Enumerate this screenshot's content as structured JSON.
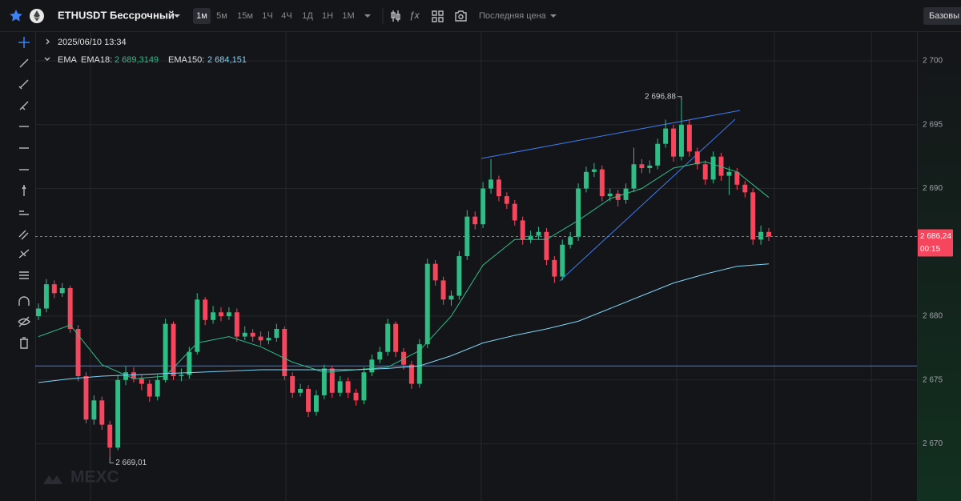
{
  "toolbar": {
    "symbol": "ETHUSDT Бессрочный",
    "intervals": [
      "1м",
      "5м",
      "15м",
      "1Ч",
      "4Ч",
      "1Д",
      "1Н",
      "1М"
    ],
    "price_type": "Последняя цена",
    "mode": "Базовы"
  },
  "watermark": "MEXC",
  "legend": {
    "datetime": "2025/06/10 13:34",
    "indicator": "EMA"
  },
  "chart_data": {
    "type": "candlestick",
    "up_color": "#2ebd85",
    "down_color": "#f6465d",
    "open": [
      2680.0,
      2680.6,
      2682.5,
      2681.8,
      2682.2,
      2679.0,
      2675.3,
      2671.9,
      2673.4,
      2671.5,
      2669.7,
      2675.0,
      2675.6,
      2675.1,
      2674.7,
      2673.7,
      2675.0,
      2679.4,
      2675.3,
      2675.4,
      2677.2,
      2681.3,
      2679.7,
      2680.3,
      2680.0,
      2680.3,
      2678.4,
      2678.7,
      2678.4,
      2678.1,
      2678.3,
      2679.0,
      2675.3,
      2674.0,
      2674.3,
      2672.5,
      2673.8,
      2675.9,
      2674.0,
      2674.9,
      2674.0,
      2673.4,
      2675.6,
      2676.6,
      2677.2,
      2679.4,
      2677.2,
      2676.2,
      2674.7,
      2677.8,
      2684.1,
      2682.8,
      2681.3,
      2681.6,
      2684.7,
      2687.8,
      2687.2,
      2690.0,
      2690.7,
      2689.4,
      2688.8,
      2687.5,
      2686.0,
      2686.3,
      2686.6,
      2684.4,
      2683.1,
      2685.6,
      2686.2,
      2690.0,
      2691.3,
      2691.5,
      2689.4,
      2689.6,
      2689.1,
      2690.0,
      2691.9,
      2691.6,
      2691.8,
      2693.5,
      2694.7,
      2692.5,
      2695.0,
      2692.9,
      2691.9,
      2690.7,
      2692.5,
      2691.0,
      2691.3,
      2690.3,
      2689.7,
      2686.0,
      2686.6
    ],
    "high": [
      2681.0,
      2682.9,
      2682.8,
      2682.6,
      2682.4,
      2679.3,
      2675.6,
      2673.8,
      2673.7,
      2671.8,
      2675.4,
      2676.1,
      2676.0,
      2675.4,
      2675.0,
      2675.4,
      2679.8,
      2679.6,
      2675.9,
      2677.6,
      2681.8,
      2681.5,
      2680.8,
      2680.7,
      2680.7,
      2680.6,
      2679.2,
      2679.0,
      2678.8,
      2678.8,
      2679.4,
      2679.2,
      2675.6,
      2674.7,
      2674.6,
      2674.2,
      2676.2,
      2676.1,
      2675.3,
      2675.2,
      2674.3,
      2676.0,
      2677.0,
      2677.6,
      2679.8,
      2679.6,
      2677.5,
      2676.5,
      2678.2,
      2684.5,
      2684.4,
      2683.1,
      2682.0,
      2685.1,
      2688.3,
      2688.2,
      2690.5,
      2692.3,
      2691.0,
      2689.7,
      2689.1,
      2687.8,
      2686.7,
      2687.0,
      2686.9,
      2684.7,
      2686.0,
      2686.6,
      2690.4,
      2691.7,
      2692.0,
      2691.8,
      2690.0,
      2689.9,
      2690.4,
      2693.2,
      2692.3,
      2692.2,
      2693.9,
      2695.4,
      2695.0,
      2696.88,
      2695.4,
      2693.2,
      2692.2,
      2692.9,
      2692.8,
      2691.7,
      2691.6,
      2690.6,
      2690.0,
      2687.1,
      2686.9
    ],
    "low": [
      2679.7,
      2680.3,
      2681.4,
      2681.5,
      2678.7,
      2674.9,
      2671.6,
      2671.5,
      2671.1,
      2669.01,
      2669.5,
      2674.6,
      2674.8,
      2674.2,
      2673.3,
      2673.4,
      2674.8,
      2675.0,
      2674.9,
      2675.1,
      2677.0,
      2679.3,
      2679.4,
      2679.6,
      2679.7,
      2678.0,
      2678.1,
      2678.0,
      2677.7,
      2677.8,
      2678.0,
      2675.0,
      2673.6,
      2673.7,
      2672.1,
      2672.2,
      2673.5,
      2673.6,
      2673.7,
      2673.6,
      2673.0,
      2673.1,
      2675.3,
      2676.3,
      2676.9,
      2676.8,
      2675.8,
      2674.3,
      2674.4,
      2677.5,
      2682.4,
      2680.9,
      2680.8,
      2681.3,
      2684.4,
      2686.8,
      2686.9,
      2689.6,
      2689.0,
      2688.4,
      2687.1,
      2685.6,
      2685.7,
      2686.0,
      2684.0,
      2682.6,
      2682.8,
      2685.3,
      2685.9,
      2689.7,
      2690.9,
      2689.0,
      2689.0,
      2688.6,
      2688.8,
      2689.7,
      2691.2,
      2691.2,
      2691.5,
      2693.2,
      2692.1,
      2692.2,
      2692.5,
      2691.5,
      2690.3,
      2690.4,
      2690.6,
      2689.5,
      2689.9,
      2689.3,
      2685.6,
      2685.6,
      2685.9
    ],
    "close": [
      2680.6,
      2682.5,
      2681.8,
      2682.2,
      2679.0,
      2675.3,
      2671.9,
      2673.4,
      2671.5,
      2669.7,
      2675.0,
      2675.6,
      2675.1,
      2674.7,
      2673.7,
      2675.0,
      2679.4,
      2675.3,
      2675.4,
      2677.2,
      2681.3,
      2679.7,
      2680.3,
      2680.0,
      2680.3,
      2678.4,
      2678.7,
      2678.4,
      2678.1,
      2678.3,
      2679.0,
      2675.3,
      2674.0,
      2674.3,
      2672.5,
      2673.8,
      2675.9,
      2674.0,
      2674.9,
      2674.0,
      2673.4,
      2675.6,
      2676.6,
      2677.2,
      2679.4,
      2677.2,
      2676.2,
      2674.7,
      2677.8,
      2684.1,
      2682.8,
      2681.3,
      2681.6,
      2684.7,
      2687.8,
      2687.2,
      2690.0,
      2690.7,
      2689.4,
      2688.8,
      2687.5,
      2686.0,
      2686.3,
      2686.6,
      2684.4,
      2683.1,
      2685.6,
      2686.2,
      2690.0,
      2691.3,
      2691.5,
      2689.4,
      2689.6,
      2689.1,
      2690.0,
      2691.9,
      2691.6,
      2691.8,
      2693.5,
      2694.7,
      2692.5,
      2695.0,
      2692.9,
      2691.9,
      2690.7,
      2692.5,
      2691.0,
      2691.3,
      2690.3,
      2689.7,
      2686.0,
      2686.6,
      2686.24
    ],
    "series": [
      {
        "name": "EMA18:",
        "color": "#2ebd85",
        "last": {
          "value": 2689.3149,
          "label": "2 689,3149"
        },
        "x": [
          0,
          4,
          8,
          12,
          16,
          20,
          24,
          28,
          32,
          36,
          40,
          44,
          48,
          52,
          56,
          60,
          64,
          68,
          72,
          76,
          80,
          84,
          88,
          92
        ],
        "values": [
          2678.4,
          2679.3,
          2676.2,
          2675.1,
          2675.3,
          2677.9,
          2678.4,
          2677.6,
          2676.4,
          2675.6,
          2675.8,
          2676.0,
          2677.3,
          2680.0,
          2684.0,
          2686.0,
          2686.0,
          2687.5,
          2689.2,
          2690.0,
          2691.6,
          2692.1,
          2691.3,
          2689.3
        ]
      },
      {
        "name": "EMA150:",
        "color": "#7fd3f7",
        "last": {
          "value": 2684.151,
          "label": "2 684,151"
        },
        "x": [
          0,
          4,
          8,
          12,
          16,
          20,
          24,
          28,
          32,
          36,
          40,
          44,
          48,
          52,
          56,
          60,
          64,
          68,
          72,
          76,
          80,
          84,
          88,
          92
        ],
        "values": [
          2674.8,
          2675.1,
          2675.3,
          2675.4,
          2675.5,
          2675.6,
          2675.7,
          2675.8,
          2675.8,
          2675.8,
          2675.8,
          2675.9,
          2676.1,
          2676.9,
          2677.9,
          2678.5,
          2679.0,
          2679.6,
          2680.6,
          2681.6,
          2682.6,
          2683.3,
          2683.9,
          2684.1
        ]
      }
    ],
    "hline": 2676.1,
    "high_marker": {
      "index": 81,
      "value": 2696.88,
      "label": "2 696,88"
    },
    "low_marker": {
      "index": 9,
      "value": 2669.01,
      "label": "2 669,01"
    },
    "last_price": {
      "value": 2686.24,
      "label": "2 686,24"
    },
    "countdown": "00:15",
    "ylim": [
      2665.52,
      2702.26
    ],
    "yticks": [
      {
        "value": 2670,
        "label": "2 670"
      },
      {
        "value": 2675,
        "label": "2 675"
      },
      {
        "value": 2680,
        "label": "2 680"
      },
      {
        "value": 2690,
        "label": "2 690"
      },
      {
        "value": 2695,
        "label": "2 695"
      },
      {
        "value": 2700,
        "label": "2 700"
      }
    ],
    "grid": true
  }
}
